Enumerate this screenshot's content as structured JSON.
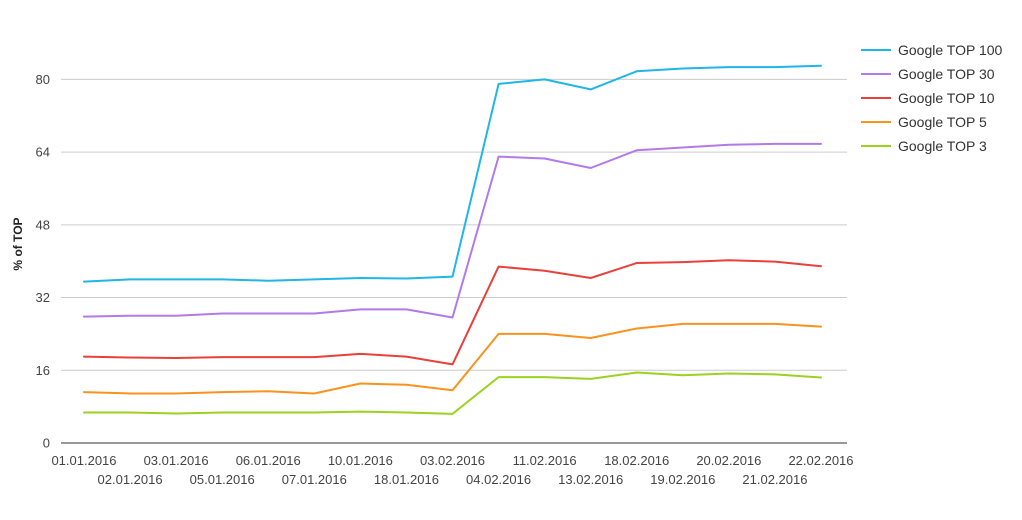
{
  "chart_data": {
    "type": "line",
    "ylabel": "% of TOP",
    "ylim": [
      0,
      88
    ],
    "yticks": [
      0,
      16,
      32,
      48,
      64,
      80
    ],
    "grid": true,
    "legend_position": "top-right",
    "x": [
      "01.01.2016",
      "02.01.2016",
      "03.01.2016",
      "05.01.2016",
      "06.01.2016",
      "07.01.2016",
      "10.01.2016",
      "18.01.2016",
      "03.02.2016",
      "04.02.2016",
      "11.02.2016",
      "13.02.2016",
      "18.02.2016",
      "19.02.2016",
      "20.02.2016",
      "21.02.2016",
      "22.02.2016"
    ],
    "series": [
      {
        "name": "Google TOP 100",
        "color": "#1fb6e8",
        "values": [
          35.5,
          36,
          36,
          36,
          35.7,
          36,
          36.3,
          36.2,
          36.6,
          79,
          80,
          77.8,
          81.8,
          82.4,
          82.7,
          82.7,
          83
        ]
      },
      {
        "name": "Google TOP 30",
        "color": "#b27ae8",
        "values": [
          27.8,
          28,
          28,
          28.5,
          28.5,
          28.5,
          29.4,
          29.4,
          27.6,
          63,
          62.6,
          60.5,
          64.4,
          65,
          65.6,
          65.8,
          65.8
        ]
      },
      {
        "name": "Google TOP 10",
        "color": "#e8403a",
        "values": [
          19,
          18.8,
          18.7,
          18.9,
          18.9,
          18.9,
          19.6,
          19,
          17.3,
          38.8,
          37.9,
          36.3,
          39.6,
          39.8,
          40.2,
          39.9,
          38.9
        ]
      },
      {
        "name": "Google TOP 5",
        "color": "#f7931e",
        "values": [
          11.2,
          10.9,
          10.9,
          11.2,
          11.4,
          10.9,
          13.1,
          12.8,
          11.6,
          24,
          24,
          23.1,
          25.2,
          26.2,
          26.2,
          26.2,
          25.6
        ]
      },
      {
        "name": "Google TOP 3",
        "color": "#9bd21f",
        "values": [
          6.7,
          6.7,
          6.5,
          6.7,
          6.7,
          6.7,
          6.9,
          6.7,
          6.4,
          14.5,
          14.5,
          14.1,
          15.5,
          14.9,
          15.3,
          15.1,
          14.4
        ]
      }
    ]
  }
}
